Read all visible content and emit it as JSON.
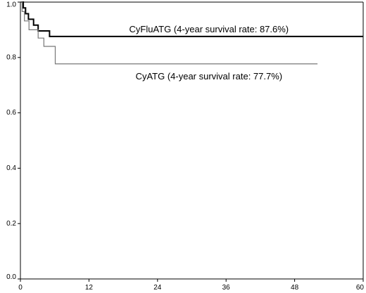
{
  "chart_data": {
    "type": "line",
    "title": "",
    "xlabel": "",
    "ylabel": "",
    "xlim": [
      0,
      60
    ],
    "ylim": [
      0.0,
      1.0
    ],
    "x_ticks": [
      0,
      12,
      24,
      36,
      48,
      60
    ],
    "y_ticks": [
      0.0,
      0.2,
      0.4,
      0.6,
      0.8,
      1.0
    ],
    "x_tick_labels": [
      "0",
      "12",
      "24",
      "36",
      "48",
      "60"
    ],
    "y_tick_labels": [
      "0.0",
      "0.2",
      "0.4",
      "0.6",
      "0.8",
      "1.0"
    ],
    "grid": false,
    "step": true,
    "series": [
      {
        "name": "CyFluATG",
        "color": "#000000",
        "style": "thick",
        "x": [
          0,
          0.5,
          0.9,
          1.4,
          2.3,
          3.1,
          5.1,
          60
        ],
        "y": [
          1.0,
          0.979,
          0.958,
          0.938,
          0.917,
          0.896,
          0.876,
          0.876
        ]
      },
      {
        "name": "CyATG",
        "color": "#777777",
        "style": "thin",
        "x": [
          0,
          0.3,
          0.7,
          1.5,
          3.1,
          4.1,
          6.1,
          52
        ],
        "y": [
          1.0,
          0.966,
          0.932,
          0.9,
          0.87,
          0.84,
          0.777,
          0.777
        ]
      }
    ],
    "annotations": [
      {
        "text": "CyFluATG (4-year survival rate: 87.6%)",
        "x": 33,
        "y": 0.9
      },
      {
        "text": "CyATG (4-year survival rate: 77.7%)",
        "x": 33,
        "y": 0.73
      }
    ]
  }
}
